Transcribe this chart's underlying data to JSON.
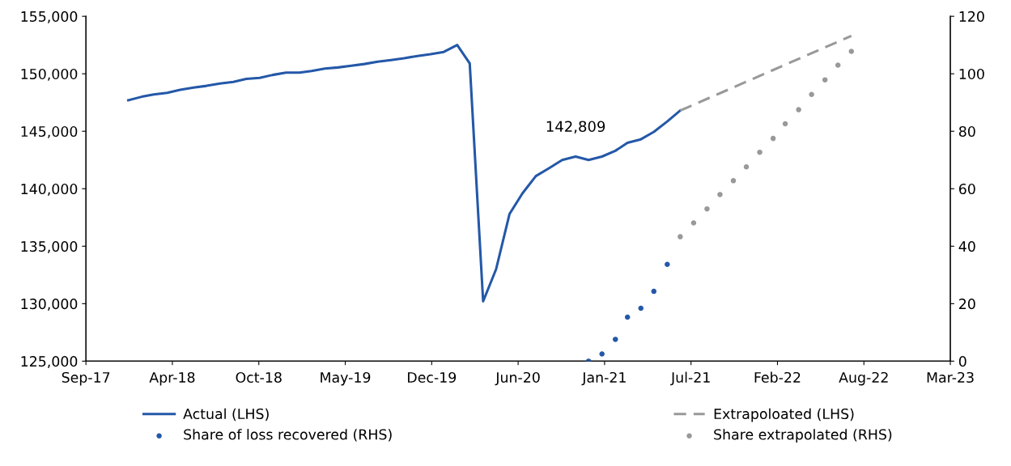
{
  "chart_data": {
    "type": "line",
    "series": [
      {
        "name": "Actual (LHS)",
        "color": "#2458a8",
        "line_style": "solid",
        "x": [
          "2018-01",
          "2018-02",
          "2018-03",
          "2018-04",
          "2018-05",
          "2018-06",
          "2018-07",
          "2018-08",
          "2018-09",
          "2018-10",
          "2018-11",
          "2018-12",
          "2019-01",
          "2019-02",
          "2019-03",
          "2019-04",
          "2019-05",
          "2019-06",
          "2019-07",
          "2019-08",
          "2019-09",
          "2019-10",
          "2019-11",
          "2019-12",
          "2020-01",
          "2020-02",
          "2020-03",
          "2020-04",
          "2020-05",
          "2020-06",
          "2020-07",
          "2020-08",
          "2020-09",
          "2020-10",
          "2020-11",
          "2020-12",
          "2021-01",
          "2021-02",
          "2021-03",
          "2021-04",
          "2021-05",
          "2021-06",
          "2021-07"
        ],
        "values": [
          147700,
          148000,
          148200,
          148350,
          148600,
          148800,
          148950,
          149150,
          149300,
          149550,
          149650,
          149900,
          150100,
          150100,
          150250,
          150450,
          150550,
          150700,
          150850,
          151050,
          151200,
          151350,
          151550,
          151700,
          151900,
          152500,
          150900,
          130200,
          133000,
          137800,
          139600,
          141100,
          141800,
          142500,
          142800,
          142500,
          142800,
          143300,
          144000,
          144300,
          144950,
          145850,
          146800
        ]
      },
      {
        "name": "Share of loss recovered (RHS)",
        "type": "scatter",
        "axis": "y2",
        "marker": "circle",
        "color": "#2458a8",
        "x": [
          "2020-12",
          "2021-01",
          "2021-02",
          "2021-03",
          "2021-04",
          "2021-05",
          "2021-06"
        ],
        "values": [
          0,
          2.5,
          7.6,
          15.3,
          18.4,
          24.3,
          33.7
        ]
      },
      {
        "name": "Extrapoloated (LHS)",
        "color": "#999999",
        "line_style": "dashed",
        "x": [
          "2021-07",
          "2022-08"
        ],
        "values": [
          146800,
          153300
        ]
      },
      {
        "name": "Share extrapolated (RHS)",
        "type": "scatter",
        "axis": "y2",
        "marker": "circle",
        "color": "#999999",
        "x": [
          "2021-07",
          "2021-08",
          "2021-09",
          "2021-10",
          "2021-11",
          "2021-12",
          "2022-01",
          "2022-02",
          "2022-03",
          "2022-04",
          "2022-05",
          "2022-06",
          "2022-07",
          "2022-08"
        ],
        "values": [
          43.3,
          48.1,
          53,
          58,
          62.8,
          67.6,
          72.7,
          77.5,
          82.6,
          87.5,
          92.8,
          97.9,
          103,
          107.8
        ]
      }
    ],
    "annotations": [
      {
        "text": "142,809",
        "x": "2020-11",
        "y": 142809
      }
    ],
    "xlim": [
      "2017-09-25",
      "2023-03-18"
    ],
    "xticks": [
      {
        "value": "2017-09-25",
        "label": "Sep-17"
      },
      {
        "value": "2018-04-13",
        "label": "Apr-18"
      },
      {
        "value": "2018-10-30",
        "label": "Oct-18"
      },
      {
        "value": "2019-05-18",
        "label": "May-19"
      },
      {
        "value": "2019-12-04",
        "label": "Dec-19"
      },
      {
        "value": "2020-06-21",
        "label": "Jun-20"
      },
      {
        "value": "2021-01-07",
        "label": "Jan-21"
      },
      {
        "value": "2021-07-26",
        "label": "Jul-21"
      },
      {
        "value": "2022-02-11",
        "label": "Feb-22"
      },
      {
        "value": "2022-08-30",
        "label": "Aug-22"
      },
      {
        "value": "2023-03-18",
        "label": "Mar-23"
      }
    ],
    "ylim": [
      125000,
      155000
    ],
    "yticks": [
      {
        "value": 125000,
        "label": "125,000"
      },
      {
        "value": 130000,
        "label": "130,000"
      },
      {
        "value": 135000,
        "label": "135,000"
      },
      {
        "value": 140000,
        "label": "140,000"
      },
      {
        "value": 145000,
        "label": "145,000"
      },
      {
        "value": 150000,
        "label": "150,000"
      },
      {
        "value": 155000,
        "label": "155,000"
      }
    ],
    "y2lim": [
      0,
      120
    ],
    "y2ticks": [
      0,
      20,
      40,
      60,
      80,
      100,
      120
    ],
    "grid": false,
    "legend": "bottom"
  }
}
